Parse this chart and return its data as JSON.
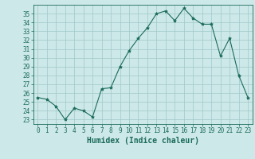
{
  "x": [
    0,
    1,
    2,
    3,
    4,
    5,
    6,
    7,
    8,
    9,
    10,
    11,
    12,
    13,
    14,
    15,
    16,
    17,
    18,
    19,
    20,
    21,
    22,
    23
  ],
  "y": [
    25.5,
    25.3,
    24.5,
    23.0,
    24.3,
    24.0,
    23.3,
    26.5,
    26.6,
    29.0,
    30.8,
    32.2,
    33.4,
    35.0,
    35.3,
    34.2,
    35.6,
    34.5,
    33.8,
    33.8,
    30.2,
    32.2,
    28.0,
    25.5
  ],
  "line_color": "#1a6b5a",
  "marker": "*",
  "marker_size": 3,
  "background_color": "#cde8e8",
  "grid_color": "#a0c8c8",
  "xlabel": "Humidex (Indice chaleur)",
  "xlim": [
    -0.5,
    23.5
  ],
  "ylim": [
    22.5,
    36
  ],
  "yticks": [
    23,
    24,
    25,
    26,
    27,
    28,
    29,
    30,
    31,
    32,
    33,
    34,
    35
  ],
  "xticks": [
    0,
    1,
    2,
    3,
    4,
    5,
    6,
    7,
    8,
    9,
    10,
    11,
    12,
    13,
    14,
    15,
    16,
    17,
    18,
    19,
    20,
    21,
    22,
    23
  ],
  "tick_label_fontsize": 5.5,
  "xlabel_fontsize": 7
}
